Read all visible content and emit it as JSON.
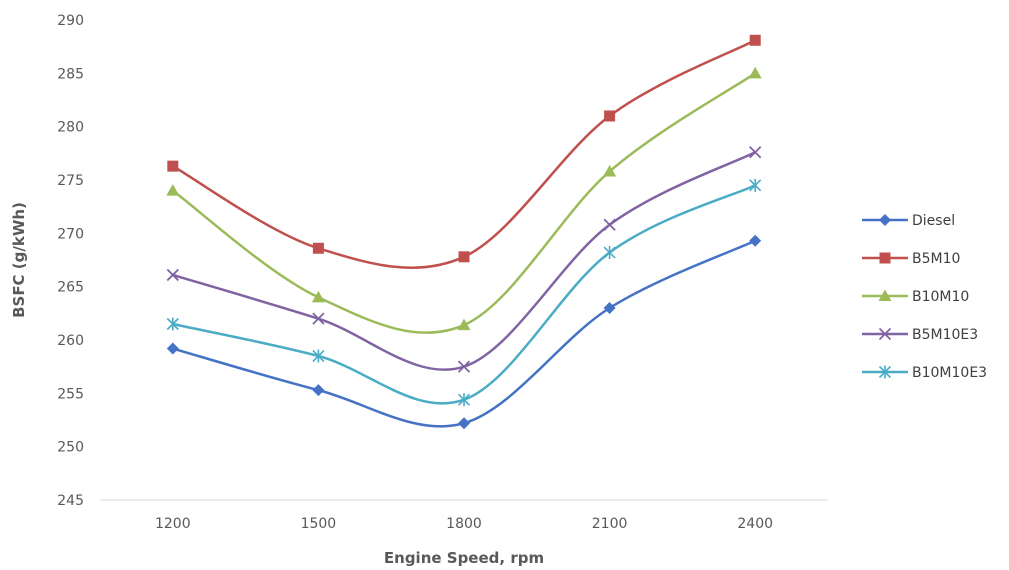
{
  "chart_data": {
    "type": "line",
    "title": "",
    "xlabel": "Engine Speed, rpm",
    "ylabel": "BSFC (g/kWh)",
    "categories": [
      "1200",
      "1500",
      "1800",
      "2100",
      "2400"
    ],
    "ylim": [
      245,
      290
    ],
    "yticks": [
      "245",
      "250",
      "255",
      "260",
      "265",
      "270",
      "275",
      "280",
      "285",
      "290"
    ],
    "grid": false,
    "smooth": true,
    "legend_position": "right",
    "series": [
      {
        "name": "Diesel",
        "values": [
          259.2,
          255.3,
          252.2,
          263.0,
          269.3
        ],
        "color": "#4472C4",
        "marker": "diamond"
      },
      {
        "name": "B5M10",
        "values": [
          276.3,
          268.6,
          267.8,
          281.0,
          288.1
        ],
        "color": "#C0504D",
        "marker": "square"
      },
      {
        "name": "B10M10",
        "values": [
          274.0,
          264.0,
          261.4,
          275.8,
          285.0
        ],
        "color": "#9BBB59",
        "marker": "triangle"
      },
      {
        "name": "B5M10E3",
        "values": [
          266.1,
          262.0,
          257.5,
          270.8,
          277.6
        ],
        "color": "#8064A2",
        "marker": "x"
      },
      {
        "name": "B10M10E3",
        "values": [
          261.5,
          258.5,
          254.4,
          268.2,
          274.5
        ],
        "color": "#4BACC6",
        "marker": "star"
      }
    ]
  }
}
